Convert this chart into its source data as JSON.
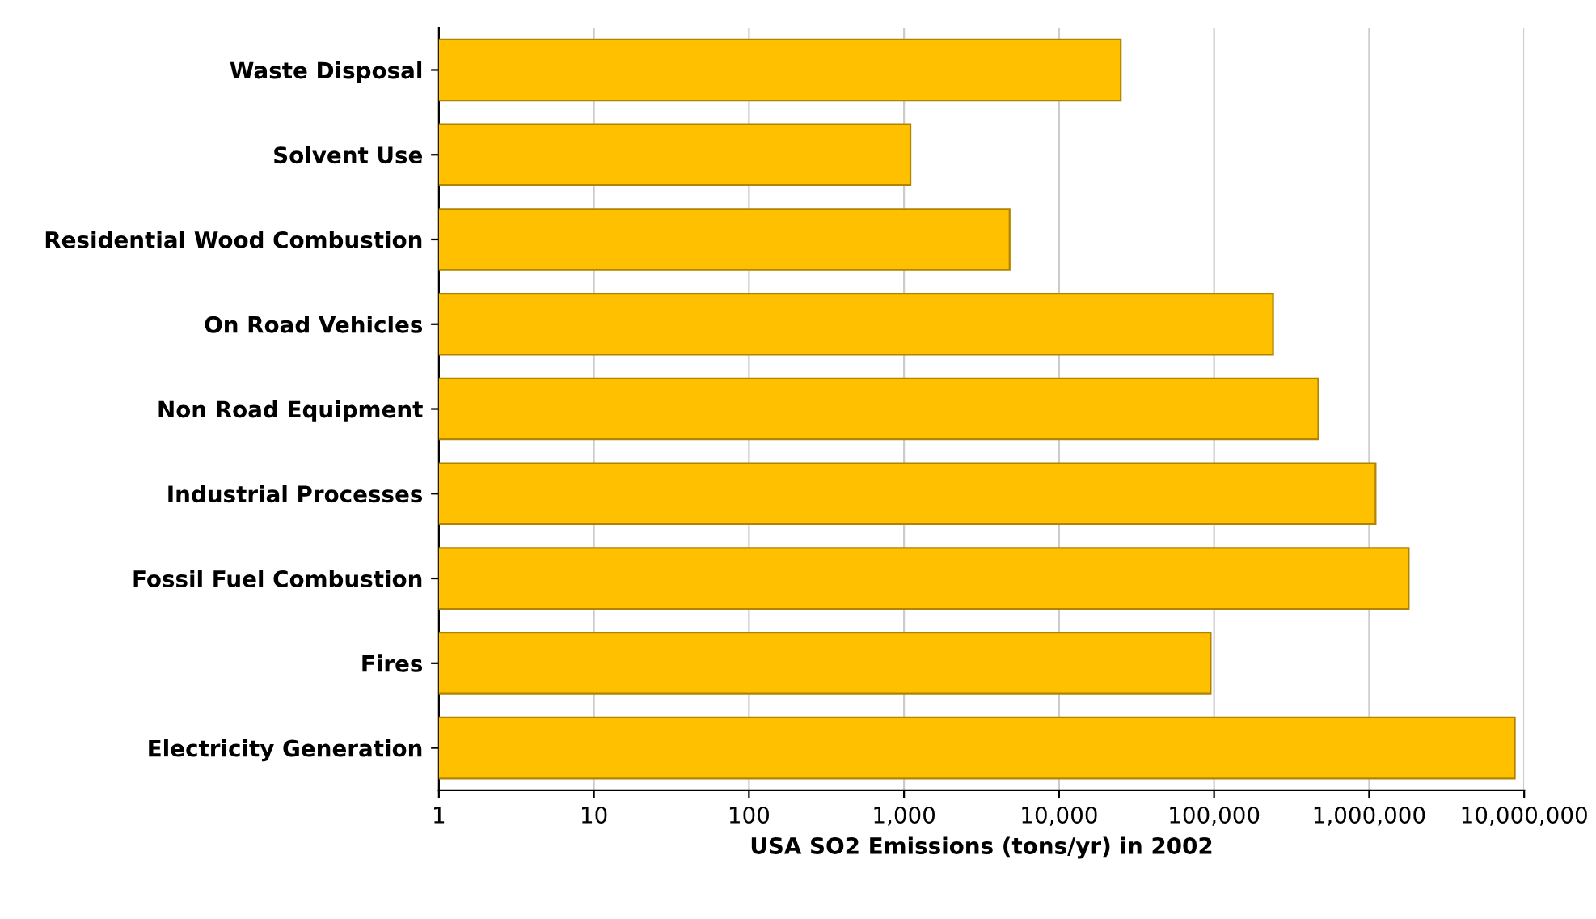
{
  "chart_data": {
    "type": "bar",
    "orientation": "horizontal",
    "xlabel": "USA SO2 Emissions (tons/yr) in 2002",
    "categories": [
      "Waste Disposal",
      "Solvent Use",
      "Residential Wood Combustion",
      "On Road Vehicles",
      "Non Road Equipment",
      "Industrial Processes",
      "Fossil Fuel Combustion",
      "Fires",
      "Electricity Generation"
    ],
    "values": [
      25000,
      1100,
      4800,
      240000,
      470000,
      1100000,
      1800000,
      95000,
      8700000
    ],
    "color": "#ffc000",
    "log": "x",
    "xlim": [
      1,
      10000000
    ],
    "xticks": [
      1,
      10,
      100,
      {
        "value": 1000,
        "label": "1,000"
      },
      {
        "value": 10000,
        "label": "10,000"
      },
      {
        "value": 100000,
        "label": "100,000"
      },
      {
        "value": 1000000,
        "label": "1,000,000"
      },
      {
        "value": 10000000,
        "label": "10,000,000"
      }
    ],
    "grid": "x",
    "legend": false
  }
}
